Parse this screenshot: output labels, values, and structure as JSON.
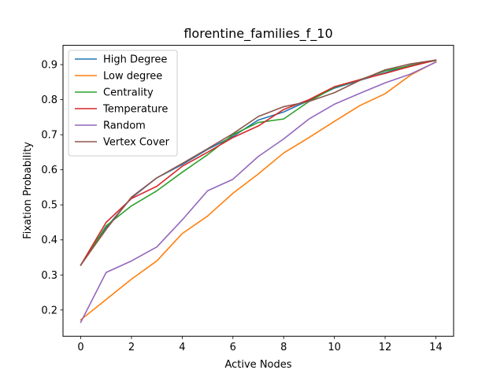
{
  "chart_data": {
    "type": "line",
    "title": "florentine_families_f_10",
    "xlabel": "Active Nodes",
    "ylabel": "Fixation Probability",
    "xlim": [
      -0.7,
      14.7
    ],
    "ylim": [
      0.125,
      0.955
    ],
    "xticks": [
      0,
      2,
      4,
      6,
      8,
      10,
      12,
      14
    ],
    "yticks": [
      0.2,
      0.3,
      0.4,
      0.5,
      0.6,
      0.7,
      0.8,
      0.9
    ],
    "grid": false,
    "legend_position": "top-left",
    "x": [
      0,
      1,
      2,
      3,
      4,
      5,
      6,
      7,
      8,
      9,
      10,
      11,
      12,
      13,
      14
    ],
    "series": [
      {
        "name": "High Degree",
        "color": "#1f77b4",
        "values": [
          0.328,
          0.435,
          0.52,
          0.577,
          0.615,
          0.658,
          0.695,
          0.742,
          0.765,
          0.798,
          0.833,
          0.855,
          0.877,
          0.898,
          0.912
        ]
      },
      {
        "name": "Low degree",
        "color": "#ff7f0e",
        "values": [
          0.172,
          0.23,
          0.288,
          0.34,
          0.418,
          0.468,
          0.533,
          0.588,
          0.648,
          0.692,
          0.738,
          0.783,
          0.817,
          0.87,
          0.908
        ]
      },
      {
        "name": "Centrality",
        "color": "#2ca02c",
        "values": [
          0.328,
          0.44,
          0.497,
          0.54,
          0.593,
          0.643,
          0.7,
          0.735,
          0.745,
          0.795,
          0.835,
          0.857,
          0.882,
          0.897,
          0.912
        ]
      },
      {
        "name": "Temperature",
        "color": "#d62728",
        "values": [
          0.328,
          0.45,
          0.518,
          0.553,
          0.61,
          0.65,
          0.692,
          0.725,
          0.772,
          0.8,
          0.837,
          0.857,
          0.875,
          0.895,
          0.913
        ]
      },
      {
        "name": "Random",
        "color": "#9467bd",
        "values": [
          0.165,
          0.307,
          0.34,
          0.38,
          0.457,
          0.54,
          0.573,
          0.638,
          0.688,
          0.745,
          0.787,
          0.818,
          0.848,
          0.873,
          0.907
        ]
      },
      {
        "name": "Vertex Cover",
        "color": "#8c564b",
        "values": [
          0.328,
          0.43,
          0.522,
          0.577,
          0.618,
          0.66,
          0.703,
          0.752,
          0.78,
          0.795,
          0.82,
          0.855,
          0.885,
          0.902,
          0.913
        ]
      }
    ]
  }
}
